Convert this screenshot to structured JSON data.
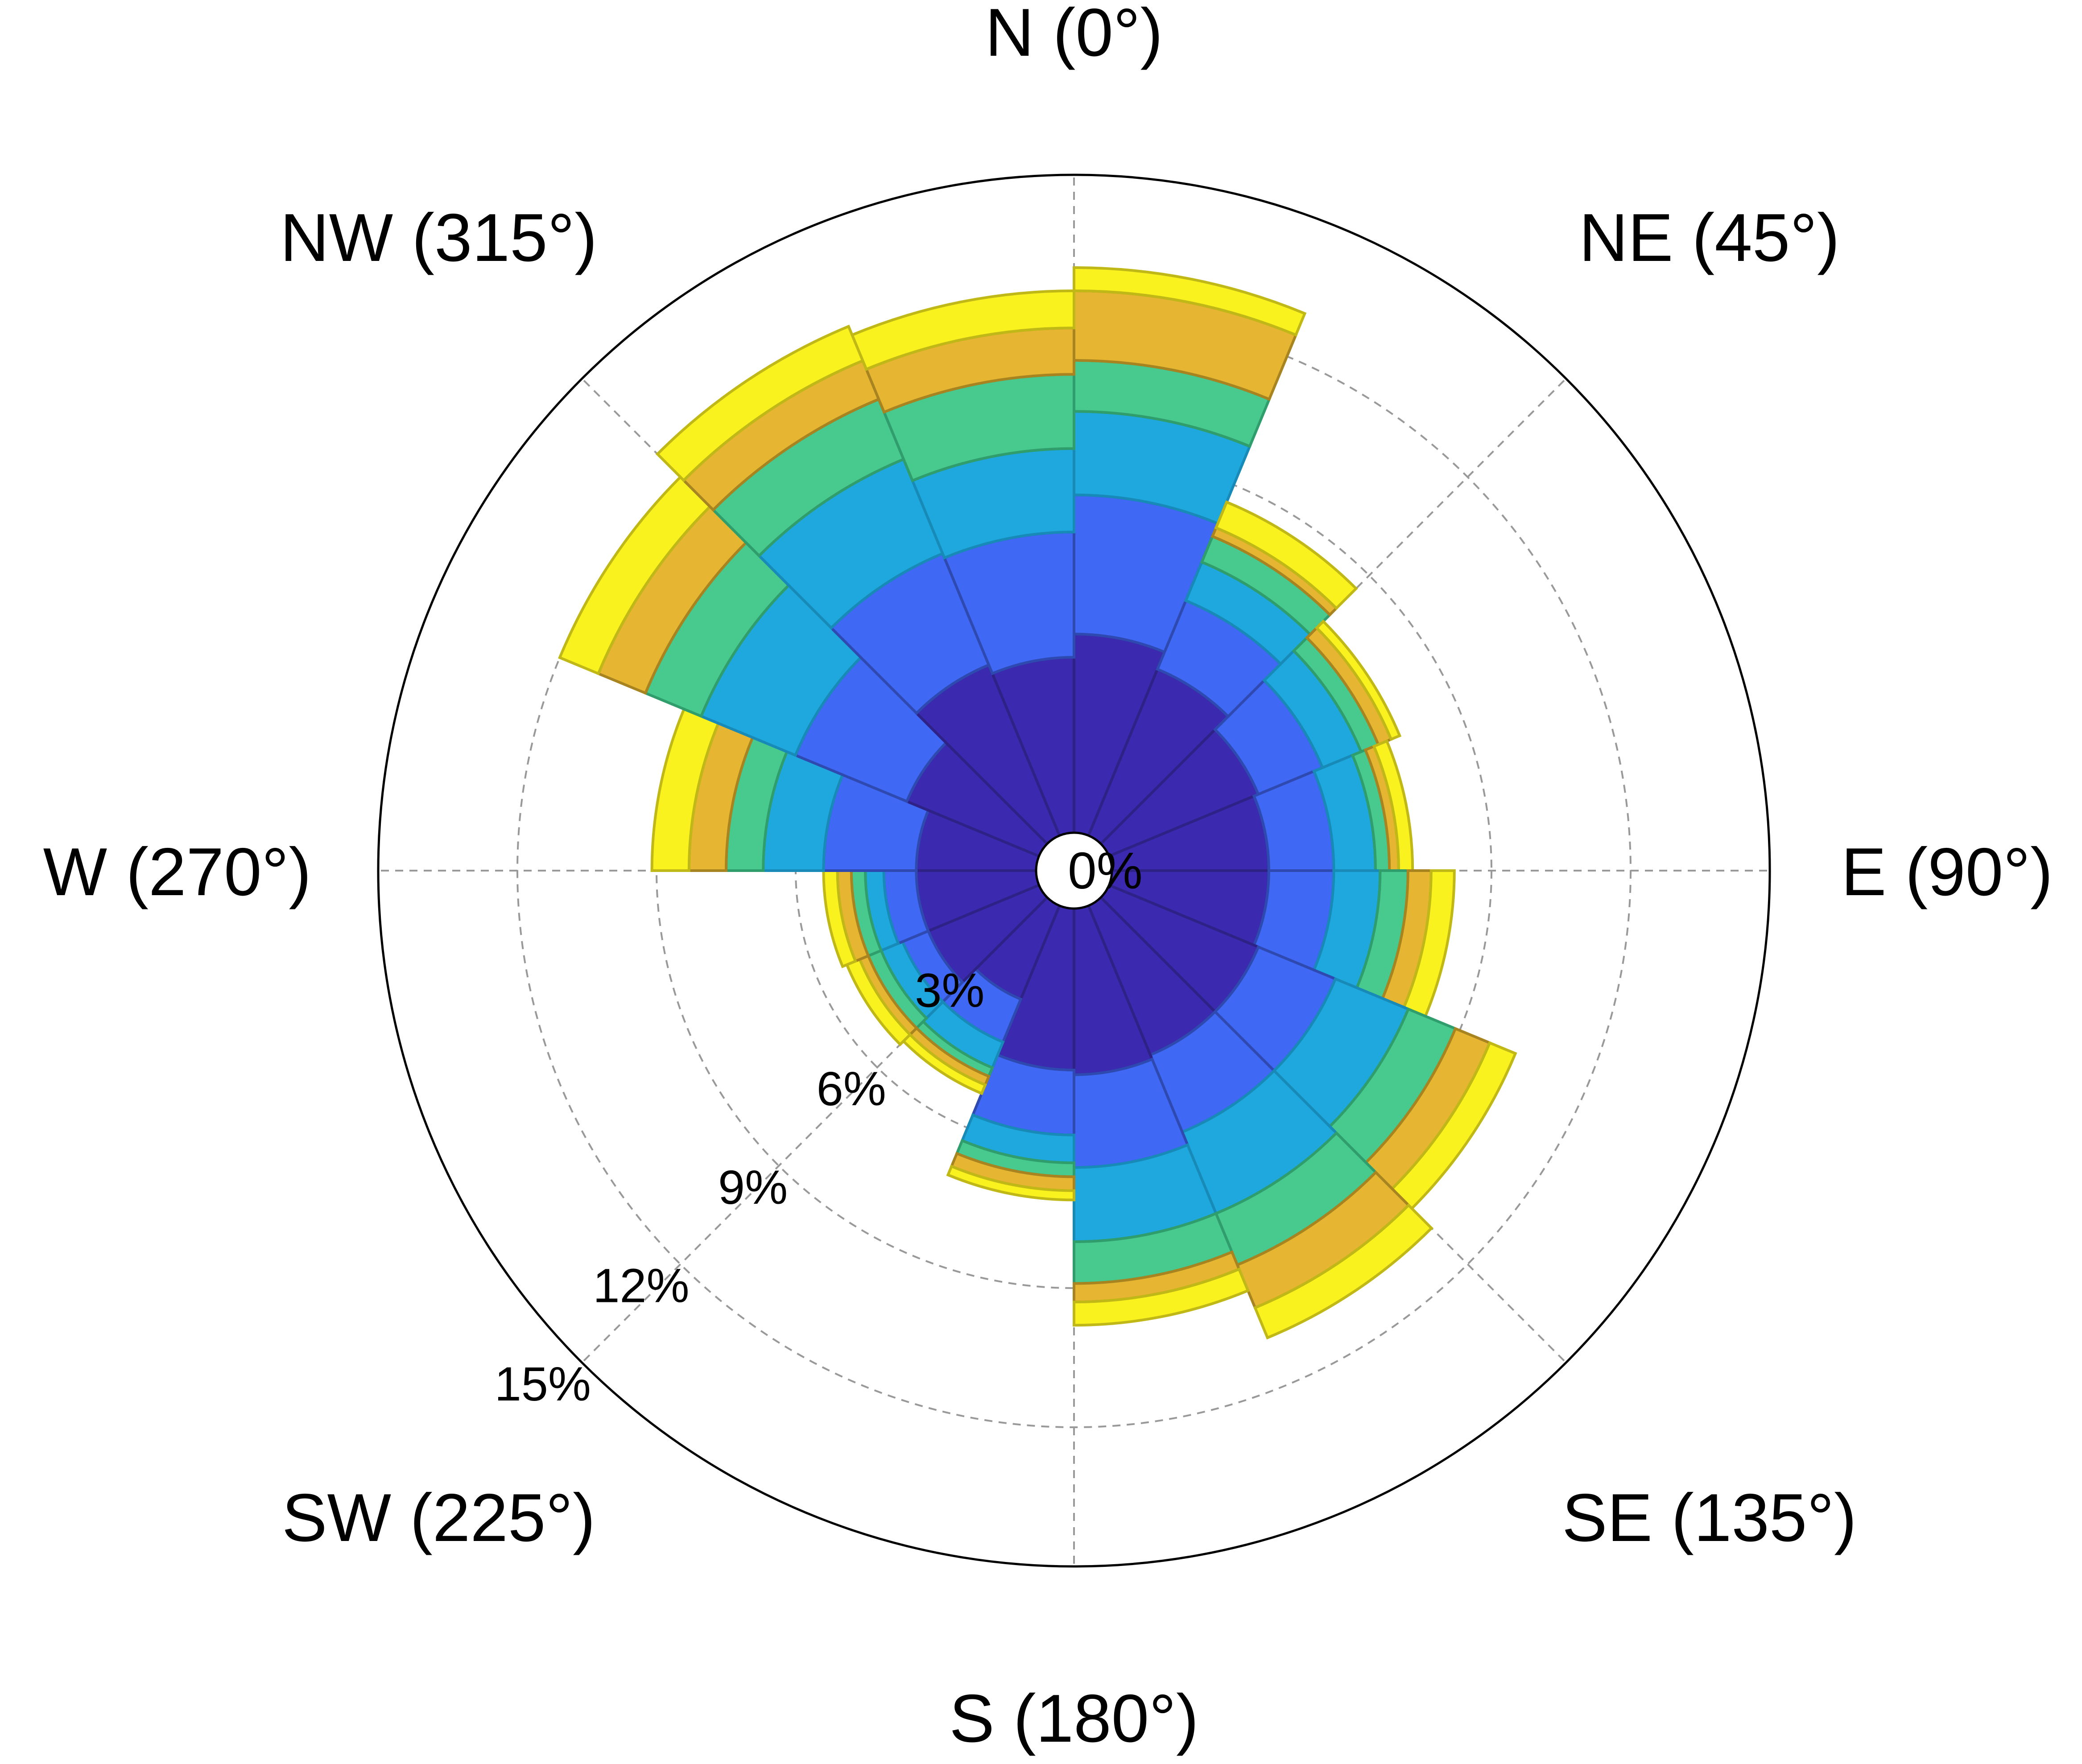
{
  "chart_data": {
    "type": "windrose",
    "directions": [
      {
        "label": "N (0°)",
        "angle": 0
      },
      {
        "label": "NE (45°)",
        "angle": 45
      },
      {
        "label": "E (90°)",
        "angle": 90
      },
      {
        "label": "SE (135°)",
        "angle": 135
      },
      {
        "label": "S (180°)",
        "angle": 180
      },
      {
        "label": "SW (225°)",
        "angle": 225
      },
      {
        "label": "W (270°)",
        "angle": 270
      },
      {
        "label": "NW (315°)",
        "angle": 315
      }
    ],
    "bin_width_deg": 22.5,
    "radial_axis": {
      "center_label": "0%",
      "tick_labels": [
        "3%",
        "6%",
        "9%",
        "12%",
        "15%"
      ],
      "ticks": [
        3,
        6,
        9,
        12,
        15
      ],
      "max": 15
    },
    "grid": true,
    "bins": [
      {
        "start_angle": 0,
        "cumulative": [
          5.1,
          8.1,
          9.9,
          11.0,
          12.5,
          13.0
        ]
      },
      {
        "start_angle": 22.5,
        "cumulative": [
          4.7,
          6.3,
          7.2,
          7.8,
          8.0,
          8.6
        ]
      },
      {
        "start_angle": 45,
        "cumulative": [
          4.3,
          5.8,
          6.7,
          7.1,
          7.4,
          7.6
        ]
      },
      {
        "start_angle": 67.5,
        "cumulative": [
          4.2,
          5.6,
          6.5,
          6.8,
          7.0,
          7.3
        ]
      },
      {
        "start_angle": 90,
        "cumulative": [
          4.2,
          5.6,
          6.6,
          7.2,
          7.7,
          8.2
        ]
      },
      {
        "start_angle": 112.5,
        "cumulative": [
          4.3,
          6.1,
          7.8,
          8.9,
          9.7,
          10.3
        ]
      },
      {
        "start_angle": 135,
        "cumulative": [
          4.3,
          6.1,
          8.0,
          9.2,
          10.2,
          10.9
        ]
      },
      {
        "start_angle": 157.5,
        "cumulative": [
          4.4,
          6.4,
          8.0,
          8.9,
          9.3,
          9.8
        ]
      },
      {
        "start_angle": 180,
        "cumulative": [
          4.3,
          5.7,
          6.3,
          6.6,
          6.9,
          7.1
        ]
      },
      {
        "start_angle": 202.5,
        "cumulative": [
          3.0,
          4.0,
          4.6,
          4.8,
          5.0,
          5.2
        ]
      },
      {
        "start_angle": 225,
        "cumulative": [
          3.4,
          4.0,
          4.5,
          4.8,
          5.0,
          5.3
        ]
      },
      {
        "start_angle": 247.5,
        "cumulative": [
          3.4,
          4.1,
          4.5,
          4.8,
          5.1,
          5.4
        ]
      },
      {
        "start_angle": 270,
        "cumulative": [
          3.4,
          5.4,
          6.7,
          7.5,
          8.3,
          9.1
        ]
      },
      {
        "start_angle": 292.5,
        "cumulative": [
          3.9,
          6.5,
          8.7,
          10.0,
          11.1,
          12.0
        ]
      },
      {
        "start_angle": 315,
        "cumulative": [
          4.8,
          7.4,
          9.6,
          11.0,
          11.9,
          12.7
        ]
      },
      {
        "start_angle": 337.5,
        "cumulative": [
          4.6,
          7.3,
          9.1,
          10.7,
          11.7,
          12.5
        ]
      }
    ],
    "colors": {
      "fills": [
        "#3b2ab0",
        "#3f68f5",
        "#1fa8dd",
        "#48c98e",
        "#e6b632",
        "#f9f21e"
      ],
      "strokes": [
        "#2e2286",
        "#2e4ab0",
        "#178ab8",
        "#2f9e6c",
        "#a88420",
        "#c0b816"
      ]
    }
  }
}
